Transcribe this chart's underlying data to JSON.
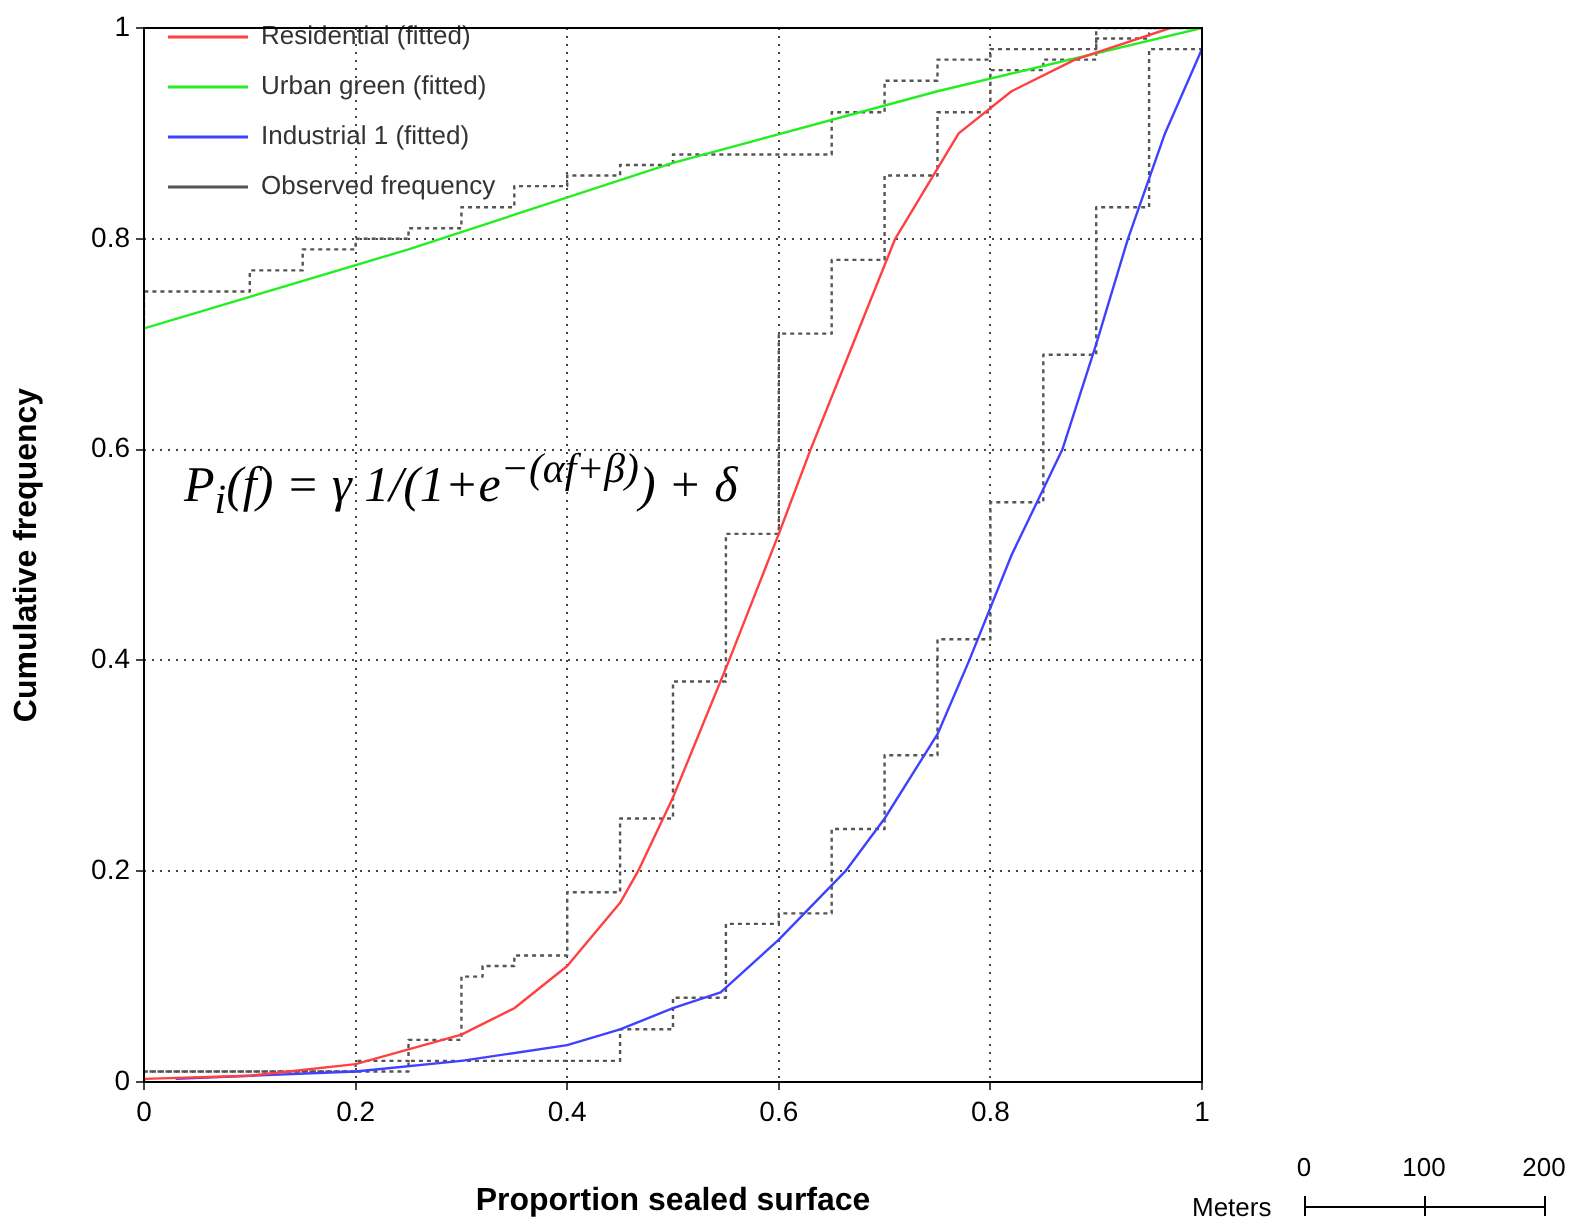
{
  "chart_data": {
    "type": "line",
    "xlabel": "Proportion sealed surface",
    "ylabel": "Cumulative frequency",
    "xlim": [
      0,
      1
    ],
    "ylim": [
      0,
      1
    ],
    "xticks": [
      0,
      0.2,
      0.4,
      0.6,
      0.8,
      1
    ],
    "yticks": [
      0,
      0.2,
      0.4,
      0.6,
      0.8,
      1
    ],
    "grid": true,
    "legend": "top left",
    "marker": "none",
    "annotations": [
      "P$_{i}$(f) = γ 1/(1+e$^{−(αf+β)}$) + δ",
      "Meters",
      "0",
      "100",
      "200"
    ],
    "series": [
      {
        "name": "Residential (fitted)",
        "color": "#ff4040",
        "line_style": "solid",
        "x": [
          0,
          0.1,
          0.2,
          0.3,
          0.35,
          0.4,
          0.45,
          0.467,
          0.5,
          0.553,
          0.6,
          0.63,
          0.67,
          0.71,
          0.77,
          0.82,
          0.88,
          0.97
        ],
        "values": [
          0.003,
          0.006,
          0.017,
          0.045,
          0.07,
          0.11,
          0.17,
          0.2,
          0.27,
          0.4,
          0.52,
          0.6,
          0.7,
          0.8,
          0.9,
          0.94,
          0.97,
          1.0
        ]
      },
      {
        "name": "Urban green (fitted)",
        "color": "#22ee22",
        "line_style": "solid",
        "x": [
          0,
          0.25,
          0.5,
          0.75,
          1
        ],
        "values": [
          0.715,
          0.79,
          0.872,
          0.94,
          1.0
        ]
      },
      {
        "name": "Industrial 1 (fitted)",
        "color": "#4040ff",
        "line_style": "solid",
        "x": [
          0.03,
          0.2,
          0.3,
          0.4,
          0.45,
          0.5,
          0.545,
          0.6,
          0.663,
          0.7,
          0.75,
          0.78,
          0.82,
          0.868,
          0.9,
          0.93,
          0.965,
          1.0
        ],
        "values": [
          0.003,
          0.01,
          0.02,
          0.035,
          0.05,
          0.07,
          0.085,
          0.135,
          0.2,
          0.25,
          0.33,
          0.4,
          0.5,
          0.6,
          0.7,
          0.8,
          0.9,
          0.98
        ]
      },
      {
        "name": "Observed frequency",
        "type": "step",
        "color": "#555555",
        "line_style": "dotted",
        "x": [
          0,
          0.1,
          0.15,
          0.2,
          0.25,
          0.3,
          0.35,
          0.4,
          0.45,
          0.5,
          0.55,
          0.6,
          0.65,
          0.7,
          0.75,
          0.8,
          0.85,
          0.9,
          0.95,
          1.0
        ],
        "values": [
          0.72,
          0.75,
          0.77,
          0.79,
          0.8,
          0.81,
          0.83,
          0.85,
          0.86,
          0.87,
          0.88,
          0.88,
          0.88,
          0.92,
          0.95,
          0.97,
          0.98,
          0.98,
          1.0,
          1.0
        ]
      },
      {
        "type": "step",
        "color": "#555555",
        "line_style": "dotted",
        "x": [
          0,
          0.2,
          0.25,
          0.3,
          0.32,
          0.35,
          0.4,
          0.45,
          0.5,
          0.55,
          0.6,
          0.65,
          0.7,
          0.75,
          0.8,
          0.85,
          0.9,
          0.95,
          1.0
        ],
        "values": [
          0.01,
          0.01,
          0.02,
          0.04,
          0.1,
          0.11,
          0.12,
          0.18,
          0.25,
          0.38,
          0.52,
          0.71,
          0.78,
          0.86,
          0.92,
          0.96,
          0.97,
          0.99,
          1.0
        ]
      },
      {
        "type": "step",
        "color": "#555555",
        "line_style": "dotted",
        "x": [
          0,
          0.25,
          0.3,
          0.4,
          0.45,
          0.5,
          0.55,
          0.6,
          0.65,
          0.7,
          0.75,
          0.8,
          0.85,
          0.9,
          0.95,
          1.0
        ],
        "values": [
          0,
          0.01,
          0.02,
          0.02,
          0.02,
          0.05,
          0.08,
          0.15,
          0.16,
          0.24,
          0.31,
          0.42,
          0.55,
          0.69,
          0.83,
          0.98
        ]
      }
    ]
  }
}
